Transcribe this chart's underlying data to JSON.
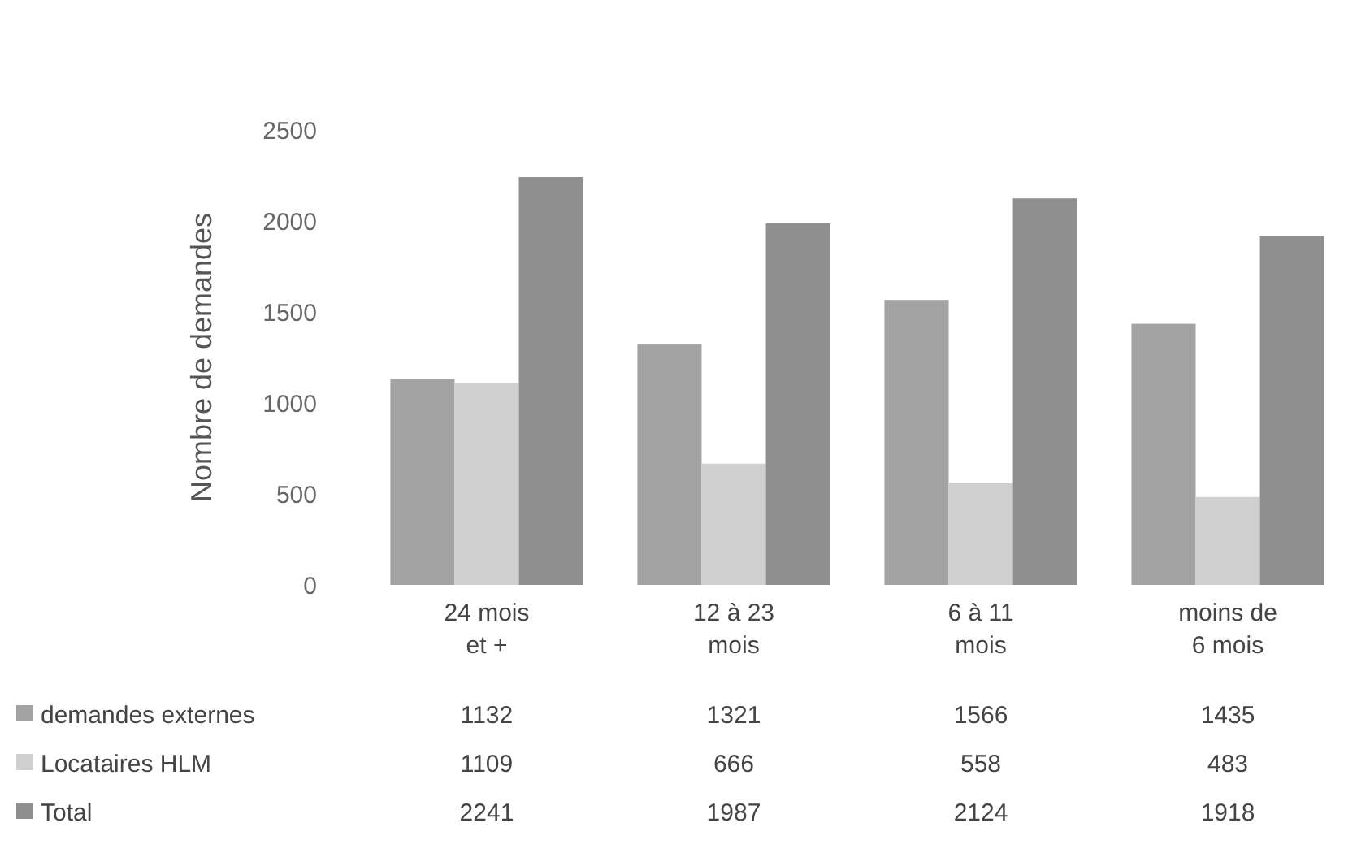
{
  "chart_data": {
    "type": "bar",
    "ylabel": "Nombre de demandes",
    "categories": [
      "24 mois et +",
      "12 à 23 mois",
      "6 à 11 mois",
      "moins de 6 mois"
    ],
    "series": [
      {
        "name": "demandes externes",
        "color": "#a3a3a3",
        "values": [
          1132,
          1321,
          1566,
          1435
        ]
      },
      {
        "name": "Locataires HLM",
        "color": "#cfcfcf",
        "values": [
          1109,
          666,
          558,
          483
        ]
      },
      {
        "name": "Total",
        "color": "#8f8f8f",
        "values": [
          2241,
          1987,
          2124,
          1918
        ]
      }
    ],
    "ylim": [
      0,
      2500
    ],
    "yticks": [
      0,
      500,
      1000,
      1500,
      2000,
      2500
    ],
    "grid": false,
    "data_labels": true,
    "legend": "bottom left"
  }
}
